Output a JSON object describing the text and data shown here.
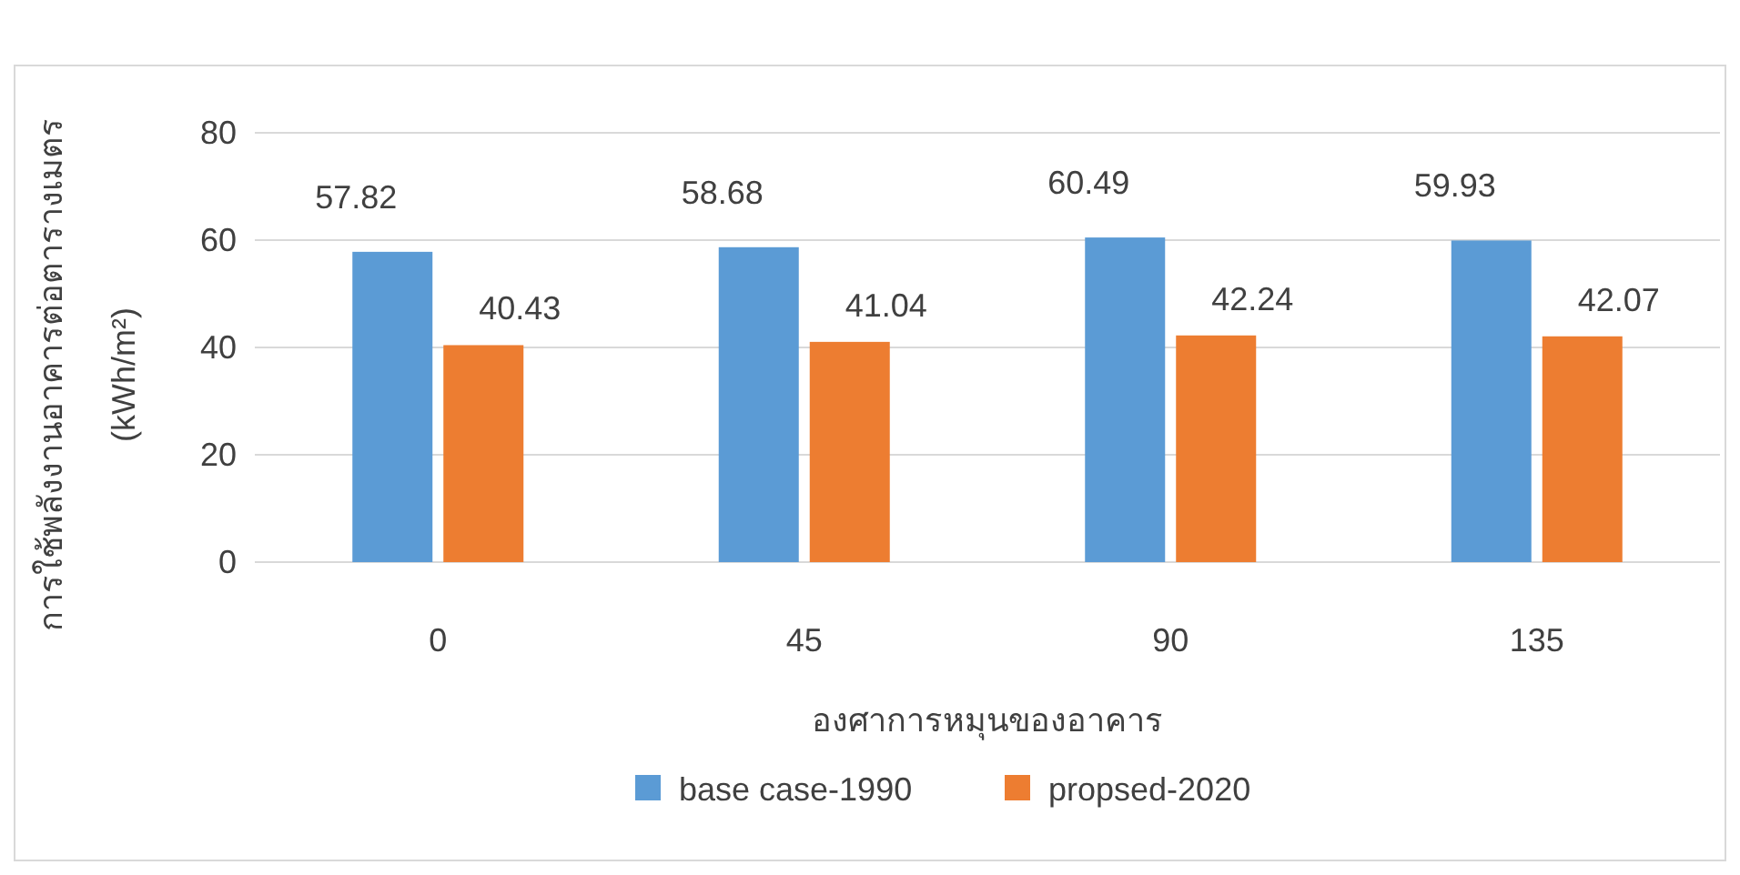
{
  "chart_data": {
    "type": "bar",
    "xlabel": "องศาการหมุนของอาคาร",
    "ylabel": "การใช้พลังงานอาคารต่อตารางเมตร\n(kWh/m²)",
    "categories": [
      "0",
      "45",
      "90",
      "135"
    ],
    "series": [
      {
        "name": "base case-1990",
        "color": "#5b9bd5",
        "values": [
          57.82,
          58.68,
          60.49,
          59.93
        ]
      },
      {
        "name": "propsed-2020",
        "color": "#ed7d31",
        "values": [
          40.43,
          41.04,
          42.24,
          42.07
        ]
      }
    ],
    "ylim": [
      0,
      80
    ],
    "yticks": [
      0,
      20,
      40,
      60,
      80
    ],
    "grid": "y",
    "legend": "bottom",
    "data_labels": true
  }
}
